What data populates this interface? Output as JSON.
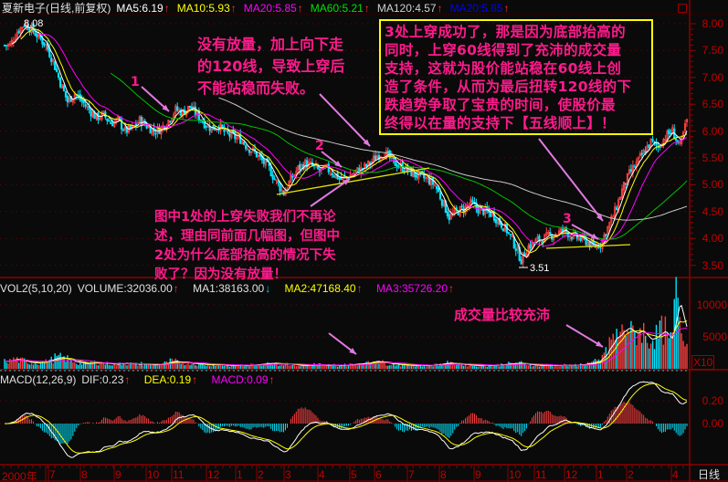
{
  "header": {
    "title": "夏新电子(日线,前复权)",
    "ma": [
      {
        "label": "MA5:6.19",
        "color": "#ffffff"
      },
      {
        "label": "MA10:5.93",
        "color": "#ffff00"
      },
      {
        "label": "MA20:5.85",
        "color": "#ff00ff"
      },
      {
        "label": "MA60:5.21",
        "color": "#00e000"
      },
      {
        "label": "MA120:4.57",
        "color": "#d0d0d0"
      },
      {
        "label": "MA20:5.85",
        "color": "#0000ff"
      }
    ],
    "trend_arrow": "↑",
    "window_icon": "restore-window-icon"
  },
  "volume_header": {
    "title": "VOL2(5,10,20)",
    "volume": "VOLUME:32036.00",
    "ma1": "MA1:38163.00",
    "ma2": "MA2:47168.40",
    "ma3": "MA3:35726.20",
    "up": "↑",
    "down": "↓"
  },
  "macd_header": {
    "title": "MACD(12,26,9)",
    "dif": "DIF:0.23",
    "dea": "DEA:0.19",
    "macd": "MACD:0.09"
  },
  "annotations": {
    "box_text": "3处上穿成功了，那是因为底部抬高的\n同时，上穿60线得到了充沛的成交量\n支持，这就为股价能站稳在60线上创\n造了条件，从而为最后扭转120线的下\n跌趋势争取了宝贵的时间，使股价最\n终得以在量的支持下【五线顺上】！",
    "top_text": "没有放量，加上向下走\n的120线，导致上穿后\n不能站稳而失败。",
    "bottom_text": "图中1处的上穿失败我们不再论\n述，理由同前面几幅图，但图中\n2处为什么底部抬高的情况下失\n败了？因为没有放量！",
    "volume_text": "成交量比较充沛",
    "marker_1": "1",
    "marker_2": "2",
    "marker_3": "3",
    "high_label": "8.08",
    "low_label": "3.51",
    "volume_multiplier": "X10"
  },
  "x_axis": {
    "year_label": "2000年",
    "months": [
      "7",
      "8",
      "9",
      "10",
      "11",
      "12",
      "1",
      "2",
      "3",
      "4",
      "5",
      "6",
      "7",
      "8",
      "9",
      "10",
      "11",
      "12",
      "1",
      "2",
      "4"
    ],
    "period_label": "日线"
  },
  "chart_data": [
    {
      "type": "candlestick",
      "title": "夏新电子(日线,前复权)",
      "y_ticks": [
        "8.00",
        "7.50",
        "7.00",
        "6.50",
        "6.00",
        "5.50",
        "5.00",
        "4.50",
        "4.00",
        "3.50"
      ],
      "ylim": [
        3.5,
        8.0
      ],
      "high": 8.08,
      "low": 3.51,
      "close": [
        7.6,
        7.85,
        8.0,
        7.9,
        7.75,
        7.6,
        7.3,
        6.9,
        6.55,
        6.7,
        6.55,
        6.4,
        6.25,
        6.3,
        6.15,
        6.2,
        6.0,
        6.05,
        6.2,
        6.1,
        6.0,
        6.05,
        6.2,
        6.4,
        6.35,
        6.45,
        6.3,
        6.15,
        6.05,
        6.1,
        5.95,
        5.9,
        5.85,
        5.7,
        5.6,
        5.45,
        5.3,
        5.05,
        4.85,
        5.1,
        5.3,
        5.4,
        5.35,
        5.25,
        5.3,
        5.2,
        5.1,
        5.15,
        5.25,
        5.3,
        5.4,
        5.55,
        5.6,
        5.45,
        5.35,
        5.3,
        5.2,
        5.15,
        5.1,
        5.0,
        4.7,
        4.4,
        4.5,
        4.55,
        4.65,
        4.55,
        4.5,
        4.45,
        4.3,
        4.15,
        3.9,
        3.6,
        3.85,
        3.95,
        4.0,
        4.05,
        4.1,
        4.15,
        4.05,
        4.0,
        3.95,
        3.85,
        3.9,
        4.2,
        4.5,
        4.9,
        5.2,
        5.4,
        5.6,
        5.8,
        5.7,
        5.9,
        6.0,
        5.7,
        6.2
      ],
      "series": [
        {
          "name": "MA5",
          "color": "#ffffff"
        },
        {
          "name": "MA10",
          "color": "#ffff00"
        },
        {
          "name": "MA20",
          "color": "#ff00ff"
        },
        {
          "name": "MA60",
          "color": "#00c000"
        },
        {
          "name": "MA120",
          "color": "#c8c8c8"
        }
      ],
      "grid": true
    },
    {
      "type": "bar",
      "title": "VOL2(5,10,20)",
      "y_ticks": [
        "10000",
        "5000"
      ],
      "ylim": [
        0,
        11500
      ],
      "values": [
        1200,
        1500,
        1300,
        1000,
        900,
        1100,
        1400,
        1800,
        1600,
        1200,
        900,
        800,
        1000,
        900,
        800,
        700,
        900,
        800,
        700,
        800,
        600,
        700,
        900,
        1200,
        1000,
        900,
        800,
        700,
        600,
        700,
        600,
        500,
        600,
        500,
        600,
        700,
        800,
        900,
        700,
        800,
        600,
        500,
        600,
        700,
        500,
        600,
        500,
        600,
        700,
        800,
        900,
        1200,
        1000,
        800,
        700,
        600,
        500,
        600,
        500,
        600,
        700,
        900,
        800,
        700,
        600,
        500,
        600,
        500,
        600,
        700,
        800,
        900,
        700,
        600,
        500,
        600,
        500,
        600,
        500,
        600,
        700,
        900,
        1200,
        2500,
        4500,
        5500,
        6500,
        5500,
        6000,
        4500,
        5000,
        6000,
        4500,
        11000,
        5500
      ],
      "grid": true
    },
    {
      "type": "bar",
      "title": "MACD(12,26,9)",
      "y_ticks": [
        "0.20",
        "0.00"
      ],
      "ylim": [
        -0.45,
        0.45
      ],
      "grid": true
    }
  ]
}
